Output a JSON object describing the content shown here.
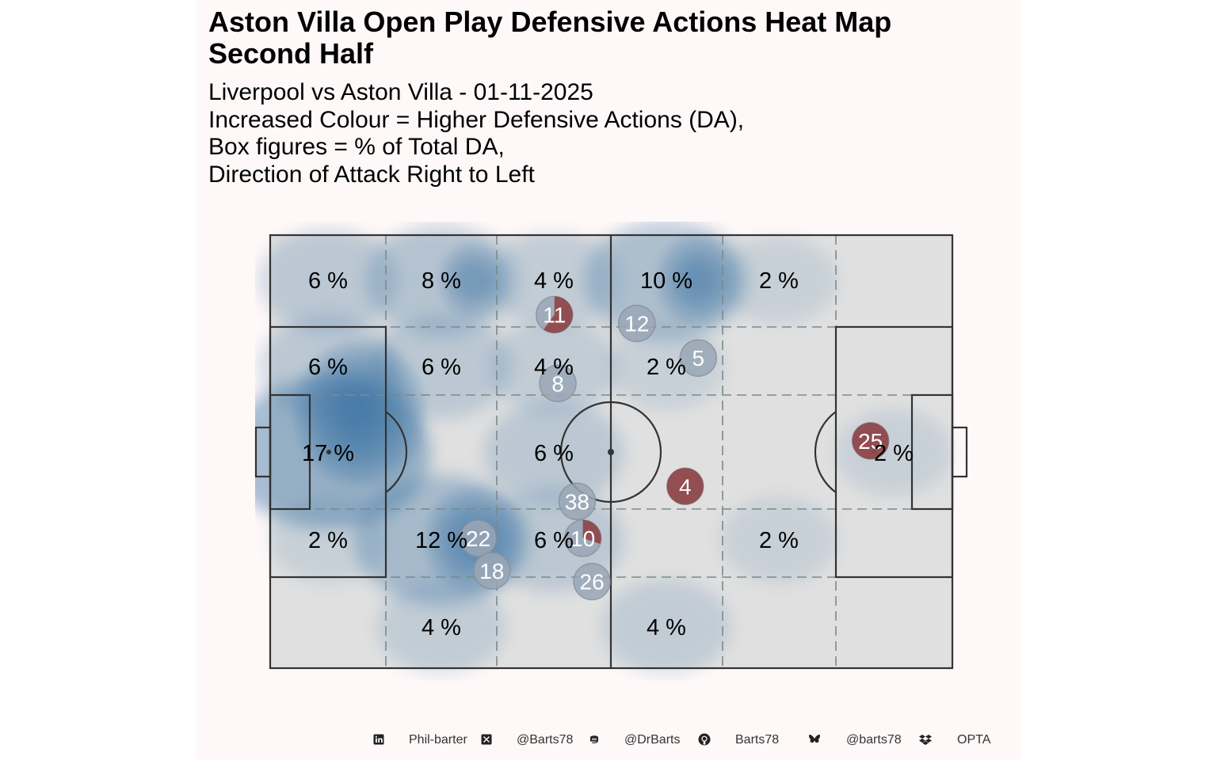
{
  "title_line1": "Aston Villa  Open Play Defensive Actions Heat Map",
  "title_line2": "Second Half",
  "subtitle_lines": [
    "Liverpool vs Aston Villa - 01-11-2025",
    "Increased Colour = Higher Defensive Actions (DA),",
    "Box figures = % of Total DA,",
    "Direction of Attack Right to Left"
  ],
  "footer": {
    "linkedin_label": "Phil-barter",
    "x_label": "@Barts78",
    "mastodon_label": "@DrBarts",
    "github_label": "Barts78",
    "bluesky_label": "@barts78",
    "source_label": "OPTA"
  },
  "colors": {
    "heat": "#3d74a6",
    "pitch": "#e0e0e0",
    "player_circle": "#8c2d2d",
    "player_text": "#ffffff"
  },
  "chart_data": {
    "type": "heatmap",
    "pitch_length": 120,
    "pitch_width": 80,
    "zone_percentages": [
      {
        "zone": "r1c1",
        "value": 6,
        "label": "6 %"
      },
      {
        "zone": "r1c2",
        "value": 8,
        "label": "8 %"
      },
      {
        "zone": "r1c3",
        "value": 4,
        "label": "4 %"
      },
      {
        "zone": "r1c4",
        "value": 10,
        "label": "10 %"
      },
      {
        "zone": "r1c5",
        "value": 2,
        "label": "2 %"
      },
      {
        "zone": "r2c1",
        "value": 6,
        "label": "6 %"
      },
      {
        "zone": "r2c2",
        "value": 6,
        "label": "6 %"
      },
      {
        "zone": "r2c3",
        "value": 4,
        "label": "4 %"
      },
      {
        "zone": "r2c4",
        "value": 2,
        "label": "2 %"
      },
      {
        "zone": "r3c1",
        "value": 17,
        "label": "17 %"
      },
      {
        "zone": "r3c3",
        "value": 6,
        "label": "6 %"
      },
      {
        "zone": "r3c7",
        "value": 2,
        "label": "2 %"
      },
      {
        "zone": "r4c1",
        "value": 2,
        "label": "2 %"
      },
      {
        "zone": "r4c2",
        "value": 12,
        "label": "12 %"
      },
      {
        "zone": "r4c3",
        "value": 6,
        "label": "6 %"
      },
      {
        "zone": "r4c5",
        "value": 2,
        "label": "2 %"
      },
      {
        "zone": "r5c2",
        "value": 4,
        "label": "4 %"
      },
      {
        "zone": "r5c4",
        "value": 4,
        "label": "4 %"
      }
    ],
    "player_average_positions": [
      {
        "number": "11",
        "x": 50.0,
        "y": 65.3,
        "share": 0.6
      },
      {
        "number": "12",
        "x": 64.5,
        "y": 63.7,
        "share": 0.0
      },
      {
        "number": "5",
        "x": 75.3,
        "y": 57.3,
        "share": 0.0
      },
      {
        "number": "8",
        "x": 50.6,
        "y": 52.6,
        "share": 0.0
      },
      {
        "number": "25",
        "x": 105.6,
        "y": 42.0,
        "share": 1.0
      },
      {
        "number": "4",
        "x": 73.0,
        "y": 33.6,
        "share": 1.0
      },
      {
        "number": "38",
        "x": 54.0,
        "y": 30.8,
        "share": 0.0
      },
      {
        "number": "22",
        "x": 36.6,
        "y": 24.0,
        "share": 0.0
      },
      {
        "number": "10",
        "x": 55.0,
        "y": 24.0,
        "share": 0.3
      },
      {
        "number": "18",
        "x": 39.0,
        "y": 18.0,
        "share": 0.0
      },
      {
        "number": "26",
        "x": 56.6,
        "y": 16.0,
        "share": 0.0
      }
    ]
  }
}
